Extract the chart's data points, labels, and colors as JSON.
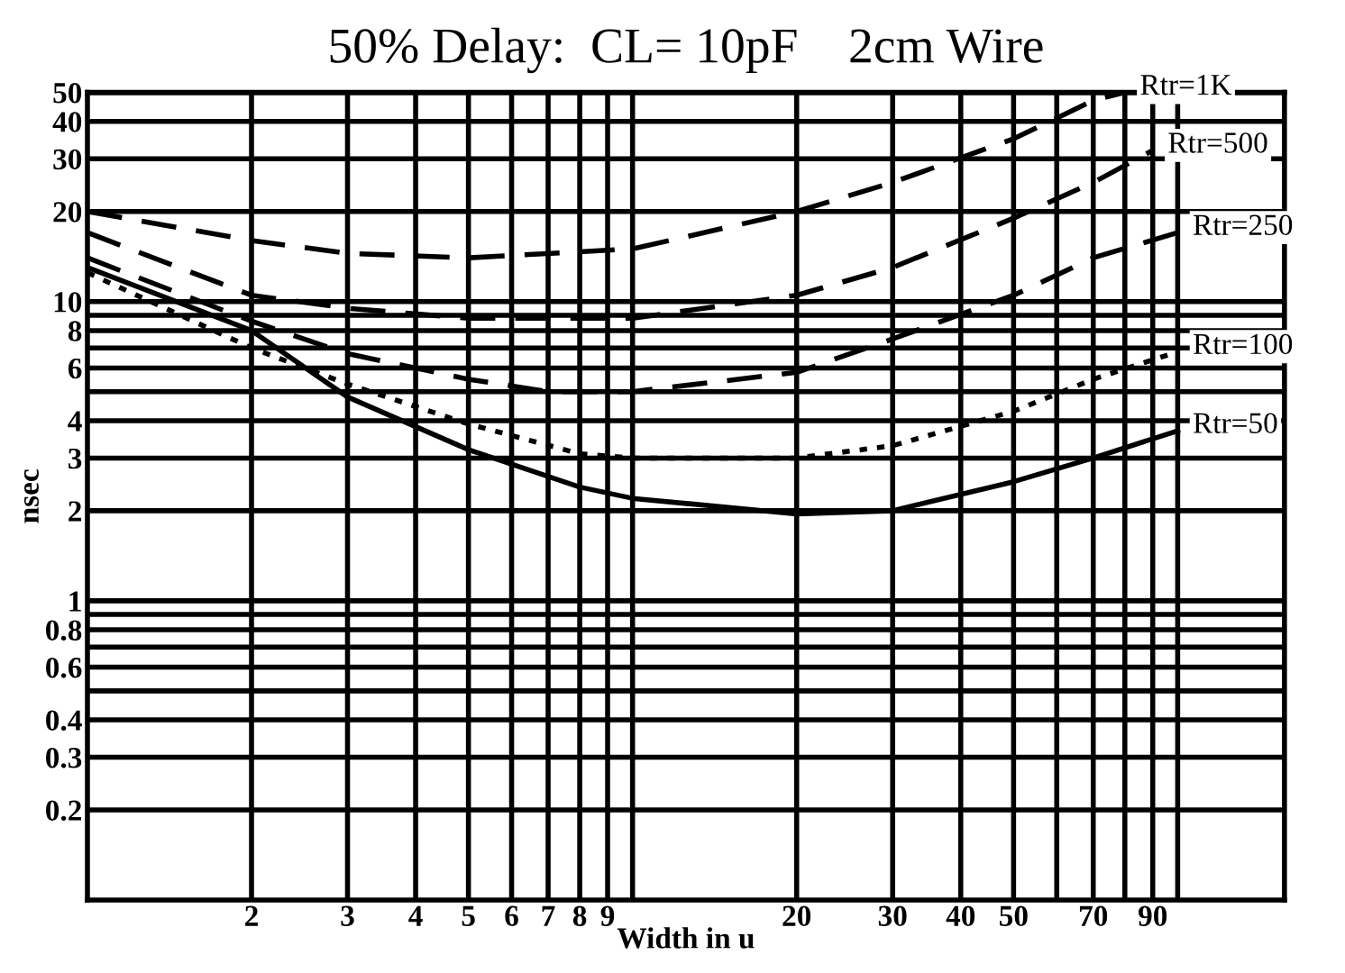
{
  "chart_data": {
    "type": "line",
    "title": "50% Delay:  CL= 10pF    2cm Wire",
    "xlabel": "Width in u",
    "ylabel": "nsec",
    "log": "xy",
    "grid": true,
    "legend": false,
    "xlim": [
      1,
      157
    ],
    "ylim": [
      0.1,
      50
    ],
    "xticks": [
      2,
      3,
      4,
      5,
      6,
      7,
      8,
      9,
      {
        "value": 10,
        "label": null
      },
      20,
      30,
      40,
      50,
      {
        "value": 60,
        "label": null
      },
      70,
      {
        "value": 80,
        "label": null
      },
      90,
      {
        "value": 100,
        "label": null
      }
    ],
    "yticks": [
      0.2,
      0.3,
      0.4,
      {
        "value": 0.5,
        "label": null
      },
      0.6,
      {
        "value": 0.7,
        "label": null
      },
      0.8,
      {
        "value": 0.9,
        "label": null
      },
      1,
      2,
      3,
      4,
      {
        "value": 5,
        "label": null
      },
      6,
      {
        "value": 7,
        "label": null
      },
      8,
      {
        "value": 9,
        "label": null
      },
      10,
      20,
      30,
      40,
      50
    ],
    "x": [
      1,
      2,
      3,
      5,
      8,
      10,
      20,
      30,
      50,
      70,
      100
    ],
    "series": [
      {
        "name": "Rtr=1K",
        "color": "#000000",
        "line_style": "dashed",
        "x": [
          1,
          2,
          3,
          5,
          10,
          20,
          30,
          50,
          70,
          80
        ],
        "values": [
          20,
          16,
          14.5,
          14,
          15,
          20,
          25,
          35,
          47,
          50
        ]
      },
      {
        "name": "Rtr=500",
        "color": "#000000",
        "line_style": "dashed",
        "x": [
          1,
          2,
          3,
          5,
          10,
          20,
          30,
          50,
          70,
          90
        ],
        "values": [
          17,
          10.5,
          9.5,
          8.8,
          8.8,
          10.5,
          13,
          19,
          25,
          32
        ]
      },
      {
        "name": "Rtr=250",
        "color": "#000000",
        "line_style": "dashed",
        "x": [
          1,
          2,
          3,
          5,
          7,
          10,
          20,
          30,
          50,
          70,
          100
        ],
        "values": [
          14,
          8.6,
          6.7,
          5.5,
          5,
          5,
          5.8,
          7.5,
          10.5,
          14,
          17
        ]
      },
      {
        "name": "Rtr=100",
        "color": "#000000",
        "line_style": "dotted",
        "values": [
          12.5,
          7,
          5.3,
          3.9,
          3.1,
          3,
          3,
          3.3,
          4.3,
          5.5,
          6.8
        ]
      },
      {
        "name": "Rtr=50",
        "color": "#000000",
        "line_style": "solid",
        "values": [
          13,
          8,
          4.8,
          3.2,
          2.4,
          2.2,
          1.95,
          2,
          2.5,
          3,
          3.7
        ]
      }
    ]
  }
}
